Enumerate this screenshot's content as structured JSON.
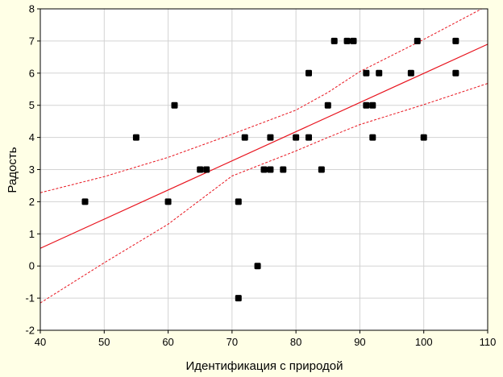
{
  "chart_data": {
    "type": "scatter",
    "xlabel": "Идентификация с природой",
    "ylabel": "Радость",
    "xlim": [
      40,
      110
    ],
    "ylim": [
      -2,
      8
    ],
    "xticks": [
      40,
      50,
      60,
      70,
      80,
      90,
      100,
      110
    ],
    "yticks": [
      -2,
      -1,
      0,
      1,
      2,
      3,
      4,
      5,
      6,
      7,
      8
    ],
    "grid": true,
    "points": [
      [
        47,
        2
      ],
      [
        55,
        4
      ],
      [
        60,
        2
      ],
      [
        61,
        5
      ],
      [
        65,
        3
      ],
      [
        66,
        3
      ],
      [
        71,
        2
      ],
      [
        71,
        -1
      ],
      [
        72,
        4
      ],
      [
        74,
        0
      ],
      [
        75,
        3
      ],
      [
        76,
        3
      ],
      [
        76,
        4
      ],
      [
        78,
        3
      ],
      [
        80,
        4
      ],
      [
        82,
        6
      ],
      [
        82,
        4
      ],
      [
        84,
        3
      ],
      [
        85,
        5
      ],
      [
        86,
        7
      ],
      [
        88,
        7
      ],
      [
        89,
        7
      ],
      [
        91,
        6
      ],
      [
        91,
        5
      ],
      [
        92,
        5
      ],
      [
        92,
        4
      ],
      [
        93,
        6
      ],
      [
        98,
        6
      ],
      [
        99,
        7
      ],
      [
        100,
        4
      ],
      [
        105,
        7
      ],
      [
        105,
        6
      ]
    ],
    "regression_line": {
      "x": [
        40,
        110
      ],
      "y": [
        0.55,
        6.9
      ]
    },
    "confidence_band_upper": {
      "x": [
        40,
        50,
        60,
        70,
        80,
        85,
        90,
        100,
        110
      ],
      "y": [
        2.28,
        2.78,
        3.38,
        4.1,
        4.85,
        5.4,
        6.05,
        7.05,
        8.1
      ]
    },
    "confidence_band_lower": {
      "x": [
        40,
        50,
        60,
        70,
        80,
        85,
        90,
        100,
        110
      ],
      "y": [
        -1.15,
        0.1,
        1.3,
        2.8,
        3.58,
        4.0,
        4.4,
        5.02,
        5.68
      ]
    },
    "colors": {
      "background": "#ffffe6",
      "plot_area": "#ffffff",
      "grid": "#d3d3d3",
      "points": "#000000",
      "regression": "#e8141e"
    }
  }
}
